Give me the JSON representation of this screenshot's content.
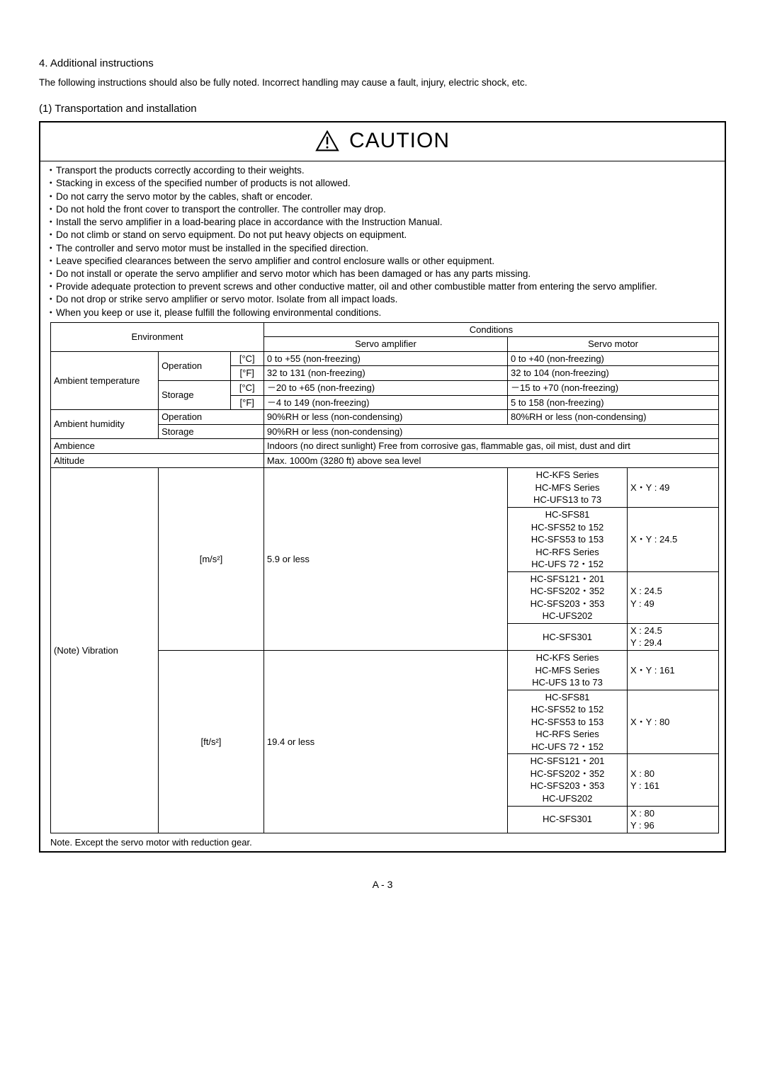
{
  "section": {
    "number_title": "4. Additional instructions",
    "intro": "The following instructions should also be fully noted. Incorrect handling may cause a fault, injury, electric shock, etc.",
    "sub_title": "(1) Transportation and installation"
  },
  "caution": {
    "title": "CAUTION",
    "bullets": [
      "Transport the products correctly according to their weights.",
      "Stacking in excess of the specified number of products is not allowed.",
      "Do not carry the servo motor by the cables, shaft or encoder.",
      "Do not hold the front cover to transport the controller. The controller may drop.",
      "Install the servo amplifier in a load-bearing place in accordance with the Instruction Manual.",
      "Do not climb or stand on servo equipment. Do not put heavy objects on equipment.",
      "The controller and servo motor must be installed in the specified direction.",
      "Leave specified clearances between the servo amplifier and control enclosure walls or other equipment.",
      "Do not install or operate the servo amplifier and servo motor which has been damaged or has any parts missing.",
      "Provide adequate protection to prevent screws and other conductive matter, oil and other combustible matter from entering the servo amplifier.",
      "Do not drop or strike servo amplifier or servo motor. Isolate from all impact loads.",
      "When you keep or use it, please fulfill the following environmental conditions."
    ]
  },
  "table": {
    "head": {
      "environment": "Environment",
      "conditions": "Conditions",
      "servo_amp": "Servo amplifier",
      "servo_motor": "Servo motor"
    },
    "ambient_temp": {
      "label": "Ambient temperature",
      "operation": "Operation",
      "storage": "Storage",
      "unit_c": "[°C]",
      "unit_f": "[°F]",
      "rows": [
        {
          "amp": "0 to +55 (non-freezing)",
          "motor": "0 to +40 (non-freezing)"
        },
        {
          "amp": "32 to 131 (non-freezing)",
          "motor": "32 to 104 (non-freezing)"
        },
        {
          "amp": "－20 to +65 (non-freezing)",
          "motor": "－15 to +70 (non-freezing)"
        },
        {
          "amp": "－4 to 149 (non-freezing)",
          "motor": "5 to 158 (non-freezing)"
        }
      ]
    },
    "ambient_hum": {
      "label": "Ambient humidity",
      "operation": "Operation",
      "storage": "Storage",
      "op_amp": "90%RH or less (non-condensing)",
      "op_motor": "80%RH or less (non-condensing)",
      "st_val": "90%RH or less (non-condensing)"
    },
    "ambience": {
      "label": "Ambience",
      "val": "Indoors (no direct sunlight) Free from corrosive gas, flammable gas, oil mist, dust and dirt"
    },
    "altitude": {
      "label": "Altitude",
      "val": "Max. 1000m (3280 ft) above sea level"
    },
    "vibration": {
      "label": "(Note) Vibration",
      "unit_ms2": "[m/s²]",
      "unit_fts2": "[ft/s²]",
      "amp_ms2": "5.9 or less",
      "amp_fts2": "19.4 or less",
      "groups_ms2": [
        {
          "models": "HC-KFS Series\nHC-MFS Series\nHC-UFS13 to 73",
          "val": "X・Y : 49"
        },
        {
          "models": "HC-SFS81\nHC-SFS52 to 152\nHC-SFS53 to 153\nHC-RFS Series\nHC-UFS 72・152",
          "val": "X・Y : 24.5"
        },
        {
          "models": "HC-SFS121・201\nHC-SFS202・352\nHC-SFS203・353\nHC-UFS202",
          "val": "X : 24.5\nY : 49"
        },
        {
          "models": "HC-SFS301",
          "val": "X : 24.5\nY : 29.4"
        }
      ],
      "groups_fts2": [
        {
          "models": "HC-KFS Series\nHC-MFS Series\nHC-UFS 13 to 73",
          "val": "X・Y : 161"
        },
        {
          "models": "HC-SFS81\nHC-SFS52 to 152\nHC-SFS53 to 153\nHC-RFS Series\nHC-UFS 72・152",
          "val": "X・Y : 80"
        },
        {
          "models": "HC-SFS121・201\nHC-SFS202・352\nHC-SFS203・353\nHC-UFS202",
          "val": "X : 80\nY : 161"
        },
        {
          "models": "HC-SFS301",
          "val": "X : 80\nY : 96"
        }
      ]
    },
    "footnote": "Note. Except the servo motor with reduction gear."
  },
  "page_number": "A - 3"
}
